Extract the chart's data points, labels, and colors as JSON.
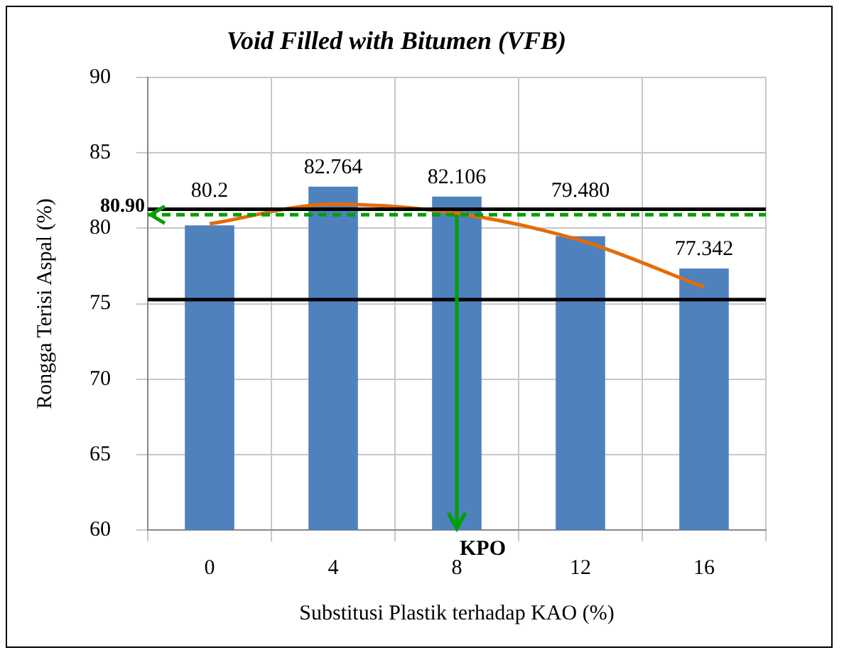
{
  "chart_data": {
    "type": "bar",
    "title": "Void Filled with Bitumen (VFB)",
    "xlabel": "Substitusi Plastik terhadap KAO (%)",
    "ylabel": "Rongga Terisi Aspal (%)",
    "categories": [
      "0",
      "4",
      "8",
      "12",
      "16"
    ],
    "series": [
      {
        "color": "#4f81bd",
        "values": [
          80.2,
          82.764,
          82.106,
          79.48,
          77.342
        ],
        "value_labels": [
          "80.2",
          "82.764",
          "82.106",
          "79.480",
          "77.342"
        ]
      },
      {
        "type": "line",
        "color": "#e36c09",
        "values": [
          80.3,
          81.6,
          81.0,
          79.2,
          76.1
        ]
      }
    ],
    "ylim": [
      60,
      90
    ],
    "yticks": [
      60,
      65,
      70,
      75,
      80,
      85,
      90
    ],
    "grid": true,
    "legend": false,
    "marker": "none",
    "ref_lines": [
      {
        "axis": "y",
        "value": 81.27,
        "color": "#000000",
        "line_style": "solid"
      },
      {
        "axis": "y",
        "value": 75.27,
        "color": "#000000",
        "line_style": "solid"
      },
      {
        "axis": "y",
        "value": 80.9,
        "label": "80.90",
        "color": "#00a000",
        "line_style": "dashed"
      },
      {
        "axis": "x",
        "value": "8",
        "label": "KPO",
        "color": "#00a000",
        "line_style": "solid"
      }
    ]
  }
}
